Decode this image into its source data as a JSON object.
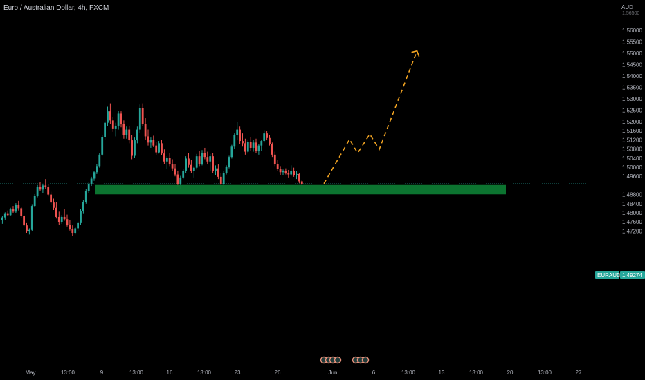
{
  "header": {
    "symbol_title": "Euro / Australian Dollar, 4h, FXCM",
    "currency_label": "AUD"
  },
  "price_tag": {
    "symbol": "EURAUD",
    "price": "1.49274",
    "value": 1.49274
  },
  "colors": {
    "background": "#000000",
    "up_candle": "#26a69a",
    "down_candle": "#ef5350",
    "zone": "#0d7a33",
    "projection": "#f5a623",
    "axis_text": "#b2b5be",
    "price_tag": "#26a69a"
  },
  "chart_data": {
    "type": "candlestick",
    "y_axis": {
      "labels": [
        "1.56000",
        "1.55500",
        "1.55000",
        "1.54500",
        "1.54000",
        "1.53500",
        "1.53000",
        "1.52500",
        "1.52000",
        "1.51600",
        "1.51200",
        "1.50800",
        "1.50400",
        "1.50000",
        "1.49600",
        "1.48800",
        "1.48400",
        "1.48000",
        "1.47600",
        "1.47200"
      ],
      "values": [
        1.56,
        1.555,
        1.55,
        1.545,
        1.54,
        1.535,
        1.53,
        1.525,
        1.52,
        1.516,
        1.512,
        1.508,
        1.504,
        1.5,
        1.496,
        1.488,
        1.484,
        1.48,
        1.476,
        1.472
      ],
      "partial_top_label": "1.56500"
    },
    "x_axis": {
      "labels": [
        "May",
        "13:00",
        "9",
        "13:00",
        "16",
        "13:00",
        "23",
        "26",
        "Jun",
        "6",
        "13:00",
        "13",
        "13:00",
        "20",
        "13:00",
        "27"
      ],
      "positions_index": [
        0,
        3,
        6,
        9,
        12,
        15,
        18,
        21,
        24,
        27,
        30,
        33,
        36,
        39,
        42,
        45
      ]
    },
    "candles": [
      [
        1.4768,
        1.4785,
        1.4752,
        1.478
      ],
      [
        1.478,
        1.4802,
        1.477,
        1.4795
      ],
      [
        1.4795,
        1.481,
        1.4785,
        1.479
      ],
      [
        1.479,
        1.4822,
        1.4788,
        1.4815
      ],
      [
        1.4815,
        1.483,
        1.4798,
        1.4805
      ],
      [
        1.4805,
        1.4842,
        1.48,
        1.4835
      ],
      [
        1.4835,
        1.4852,
        1.481,
        1.482
      ],
      [
        1.482,
        1.4825,
        1.478,
        1.4785
      ],
      [
        1.4785,
        1.479,
        1.474,
        1.4745
      ],
      [
        1.4745,
        1.4755,
        1.4712,
        1.4718
      ],
      [
        1.4718,
        1.4732,
        1.4705,
        1.4725
      ],
      [
        1.4725,
        1.4838,
        1.472,
        1.483
      ],
      [
        1.483,
        1.4882,
        1.4825,
        1.4875
      ],
      [
        1.4875,
        1.4922,
        1.4868,
        1.4915
      ],
      [
        1.4915,
        1.4935,
        1.4895,
        1.4902
      ],
      [
        1.4902,
        1.4928,
        1.4885,
        1.492
      ],
      [
        1.492,
        1.4948,
        1.4905,
        1.4912
      ],
      [
        1.4912,
        1.4925,
        1.4872,
        1.488
      ],
      [
        1.488,
        1.4892,
        1.4835,
        1.4845
      ],
      [
        1.4845,
        1.4862,
        1.4812,
        1.4822
      ],
      [
        1.4822,
        1.4848,
        1.4775,
        1.4782
      ],
      [
        1.4782,
        1.4805,
        1.4748,
        1.476
      ],
      [
        1.476,
        1.479,
        1.4752,
        1.4782
      ],
      [
        1.4782,
        1.4815,
        1.4765,
        1.4772
      ],
      [
        1.4772,
        1.4792,
        1.474,
        1.4748
      ],
      [
        1.4748,
        1.4768,
        1.4722,
        1.473
      ],
      [
        1.473,
        1.4745,
        1.47,
        1.4712
      ],
      [
        1.4712,
        1.4738,
        1.4705,
        1.4732
      ],
      [
        1.4732,
        1.4762,
        1.472,
        1.4755
      ],
      [
        1.4755,
        1.4815,
        1.4748,
        1.4808
      ],
      [
        1.4808,
        1.4855,
        1.4795,
        1.4848
      ],
      [
        1.4848,
        1.4905,
        1.484,
        1.4895
      ],
      [
        1.4895,
        1.4932,
        1.4885,
        1.4925
      ],
      [
        1.4925,
        1.4958,
        1.4918,
        1.495
      ],
      [
        1.495,
        1.4985,
        1.494,
        1.4978
      ],
      [
        1.4978,
        1.5015,
        1.497,
        1.5005
      ],
      [
        1.5005,
        1.5062,
        1.4998,
        1.5055
      ],
      [
        1.5055,
        1.5142,
        1.505,
        1.5132
      ],
      [
        1.5132,
        1.5205,
        1.512,
        1.5195
      ],
      [
        1.5195,
        1.5265,
        1.518,
        1.5245
      ],
      [
        1.5245,
        1.528,
        1.519,
        1.5205
      ],
      [
        1.5205,
        1.522,
        1.5155,
        1.517
      ],
      [
        1.517,
        1.5195,
        1.5135,
        1.5182
      ],
      [
        1.5182,
        1.5248,
        1.5165,
        1.5235
      ],
      [
        1.5235,
        1.5245,
        1.5175,
        1.519
      ],
      [
        1.519,
        1.5205,
        1.5125,
        1.5142
      ],
      [
        1.5142,
        1.5178,
        1.5125,
        1.5165
      ],
      [
        1.5165,
        1.518,
        1.5105,
        1.5118
      ],
      [
        1.5118,
        1.5142,
        1.5035,
        1.505
      ],
      [
        1.505,
        1.513,
        1.504,
        1.5118
      ],
      [
        1.5118,
        1.5178,
        1.5105,
        1.5165
      ],
      [
        1.5165,
        1.5275,
        1.515,
        1.526
      ],
      [
        1.526,
        1.528,
        1.518,
        1.519
      ],
      [
        1.519,
        1.5215,
        1.512,
        1.5135
      ],
      [
        1.5135,
        1.5165,
        1.5095,
        1.5108
      ],
      [
        1.5108,
        1.513,
        1.5085,
        1.512
      ],
      [
        1.512,
        1.5138,
        1.5088,
        1.5095
      ],
      [
        1.5095,
        1.5112,
        1.5055,
        1.5065
      ],
      [
        1.5065,
        1.5115,
        1.506,
        1.5105
      ],
      [
        1.5105,
        1.512,
        1.5052,
        1.506
      ],
      [
        1.506,
        1.5078,
        1.5015,
        1.5025
      ],
      [
        1.5025,
        1.5048,
        1.4992,
        1.5042
      ],
      [
        1.5042,
        1.5062,
        1.5005,
        1.5012
      ],
      [
        1.5012,
        1.5035,
        1.4985,
        1.4995
      ],
      [
        1.4995,
        1.5012,
        1.496,
        1.4968
      ],
      [
        1.4968,
        1.4985,
        1.4915,
        1.4925
      ],
      [
        1.4925,
        1.4962,
        1.4905,
        1.4955
      ],
      [
        1.4955,
        1.4992,
        1.4948,
        1.4985
      ],
      [
        1.4985,
        1.5048,
        1.4975,
        1.5038
      ],
      [
        1.5038,
        1.5062,
        1.4998,
        1.501
      ],
      [
        1.501,
        1.5032,
        1.4975,
        1.4982
      ],
      [
        1.4982,
        1.5005,
        1.4955,
        1.4998
      ],
      [
        1.4998,
        1.5058,
        1.499,
        1.5048
      ],
      [
        1.5048,
        1.5072,
        1.5005,
        1.5015
      ],
      [
        1.5015,
        1.5075,
        1.5008,
        1.5062
      ],
      [
        1.5062,
        1.5085,
        1.5035,
        1.5045
      ],
      [
        1.5045,
        1.5068,
        1.5012,
        1.5025
      ],
      [
        1.5025,
        1.5058,
        1.4985,
        1.5048
      ],
      [
        1.5048,
        1.5062,
        1.4975,
        1.4985
      ],
      [
        1.4985,
        1.5008,
        1.4965,
        1.4995
      ],
      [
        1.4995,
        1.5012,
        1.4948,
        1.4958
      ],
      [
        1.4958,
        1.4975,
        1.4915,
        1.4925
      ],
      [
        1.4925,
        1.4982,
        1.4915,
        1.4975
      ],
      [
        1.4975,
        1.5008,
        1.4968,
        1.5002
      ],
      [
        1.5002,
        1.505,
        1.4995,
        1.5045
      ],
      [
        1.5045,
        1.5098,
        1.5038,
        1.509
      ],
      [
        1.509,
        1.5148,
        1.508,
        1.514
      ],
      [
        1.514,
        1.5198,
        1.5118,
        1.5165
      ],
      [
        1.5165,
        1.5178,
        1.5102,
        1.5115
      ],
      [
        1.5115,
        1.5148,
        1.509,
        1.5105
      ],
      [
        1.5105,
        1.5125,
        1.5055,
        1.5068
      ],
      [
        1.5068,
        1.5118,
        1.506,
        1.5112
      ],
      [
        1.5112,
        1.5132,
        1.5072,
        1.5085
      ],
      [
        1.5085,
        1.512,
        1.5068,
        1.5108
      ],
      [
        1.5108,
        1.5125,
        1.5062,
        1.5072
      ],
      [
        1.5072,
        1.51,
        1.5055,
        1.5095
      ],
      [
        1.5095,
        1.5118,
        1.5072,
        1.5115
      ],
      [
        1.5115,
        1.5162,
        1.5108,
        1.5148
      ],
      [
        1.5148,
        1.5158,
        1.5118,
        1.5128
      ],
      [
        1.5128,
        1.514,
        1.5095,
        1.5102
      ],
      [
        1.5102,
        1.5108,
        1.5045,
        1.5055
      ],
      [
        1.5055,
        1.5068,
        1.5005,
        1.5012
      ],
      [
        1.5012,
        1.5032,
        1.4985,
        1.4992
      ],
      [
        1.4992,
        1.5005,
        1.4965,
        1.4978
      ],
      [
        1.4978,
        1.499,
        1.4965,
        1.4985
      ],
      [
        1.4985,
        1.4995,
        1.4968,
        1.4975
      ],
      [
        1.4975,
        1.4988,
        1.4955,
        1.4968
      ],
      [
        1.4968,
        1.5008,
        1.4962,
        1.4982
      ],
      [
        1.4982,
        1.4998,
        1.4958,
        1.4965
      ],
      [
        1.4965,
        1.4985,
        1.4948,
        1.497
      ],
      [
        1.497,
        1.4975,
        1.493,
        1.4938
      ],
      [
        1.4938,
        1.4942,
        1.4918,
        1.4927
      ]
    ],
    "demand_zone": {
      "top": 1.4922,
      "bottom": 1.4881
    },
    "projection_path": [
      {
        "bar": 119.5,
        "price": 1.4928
      },
      {
        "bar": 129,
        "price": 1.5122
      },
      {
        "bar": 132,
        "price": 1.5062
      },
      {
        "bar": 136.5,
        "price": 1.5145
      },
      {
        "bar": 140,
        "price": 1.5078
      },
      {
        "bar": 154,
        "price": 1.551
      }
    ],
    "current_price": 1.49274
  }
}
